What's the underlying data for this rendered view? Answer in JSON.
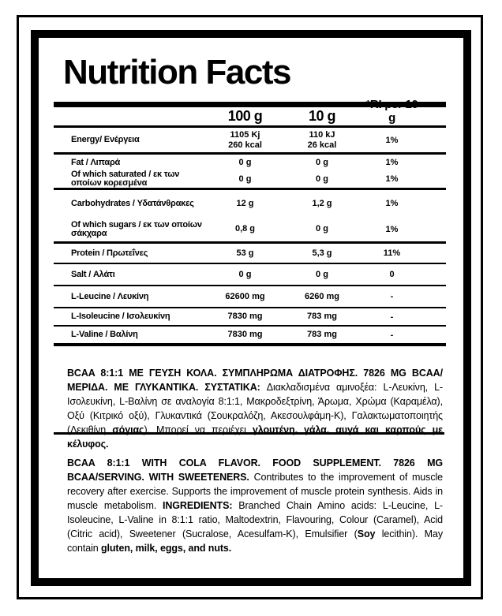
{
  "colors": {
    "ink": "#000000",
    "background": "#ffffff"
  },
  "label": {
    "title": "Nutrition Facts",
    "columns": [
      "100 g",
      "10 g",
      "*RI per 10 g"
    ],
    "rows": [
      {
        "name": "Energy/ Ενέργεια",
        "per100": [
          "1105 Kj",
          "260 kcal"
        ],
        "per10": [
          "110 kJ",
          "26 kcal"
        ],
        "ri": "1%"
      },
      {
        "name": "Fat / Λιπαρά",
        "per100": [
          "0 g"
        ],
        "per10": [
          "0 g"
        ],
        "ri": "1%"
      },
      {
        "name": "Of which saturated / εκ των οποίων κορεσμένα",
        "per100": [
          "0 g"
        ],
        "per10": [
          "0 g"
        ],
        "ri": "1%"
      },
      {
        "name": "Carbohydrates / Υδατάνθρακες",
        "per100": [
          "12 g"
        ],
        "per10": [
          "1,2 g"
        ],
        "ri": "1%"
      },
      {
        "name": "Of which sugars / εκ των οποίων σάκχαρα",
        "per100": [
          "0,8 g"
        ],
        "per10": [
          "0 g"
        ],
        "ri": "1%"
      },
      {
        "name": "Protein / Πρωτεΐνες",
        "per100": [
          "53 g"
        ],
        "per10": [
          "5,3 g"
        ],
        "ri": "11%"
      },
      {
        "name": "Salt / Αλάτι",
        "per100": [
          "0 g"
        ],
        "per10": [
          "0 g"
        ],
        "ri": "0"
      },
      {
        "name": "L-Leucine / Λευκίνη",
        "per100": [
          "62600 mg"
        ],
        "per10": [
          "6260 mg"
        ],
        "ri": "-"
      },
      {
        "name": "L-Isoleucine / Ισολευκίνη",
        "per100": [
          "7830 mg"
        ],
        "per10": [
          "783 mg"
        ],
        "ri": "-"
      },
      {
        "name": "L-Valine / Βαλίνη",
        "per100": [
          "7830 mg"
        ],
        "per10": [
          "783 mg"
        ],
        "ri": "-"
      }
    ]
  },
  "paragraph_greek": [
    {
      "t": "BCAA 8:1:1 ΜΕ ΓΕΥΣΗ ΚΟΛΑ. ΣΥΜΠΛΗΡΩΜΑ ΔΙΑΤΡΟΦΗΣ. 7826 MG BCAA/ΜΕΡΙΔΑ. ΜΕ ΓΛΥΚΑΝΤΙΚΑ. ΣΥΣΤΑΤΙΚΑ: ",
      "b": true
    },
    {
      "t": "Διακλαδισμένα αμινοξέα: L-Λευκίνη, L-Ισολευκίνη, L-Βαλίνη σε αναλογία 8:1:1, Μακροδεξτρίνη, Άρωμα, Χρώμα (Καραμέλα), Οξύ (Κιτρικό οξύ), Γλυκαντικά (Σουκραλόζη, Ακεσουλφάμη-Κ), Γαλακτωματοποιητής (Λεκιθίνη ",
      "b": false
    },
    {
      "t": "σόγιας",
      "b": true
    },
    {
      "t": "). Μπορεί να περιέχει ",
      "b": false
    },
    {
      "t": "γλουτένη, γάλα, αυγά και καρπούς με κέλυφος.",
      "b": true
    }
  ],
  "paragraph_english": [
    {
      "t": "BCAA 8:1:1 WITH COLA FLAVOR. FOOD SUPPLEMENT. 7826 MG BCAA/SERVING. WITH SWEETENERS. ",
      "b": true
    },
    {
      "t": "Contributes to the improvement of muscle recovery after exercise. Supports the improvement of muscle protein synthesis. Aids in muscle metabolism. ",
      "b": false
    },
    {
      "t": "INGREDIENTS: ",
      "b": true
    },
    {
      "t": "Branched Chain Amino acids: L-Leucine, L-Isoleucine, L-Valine in 8:1:1 ratio, Maltodextrin, Flavouring, Colour (Caramel), Acid (Citric acid), Sweetener (Sucralose, Acesulfam-K), Emulsifier (",
      "b": false
    },
    {
      "t": "Soy",
      "b": true
    },
    {
      "t": " lecithin). May contain ",
      "b": false
    },
    {
      "t": "gluten, milk, eggs, and nuts.",
      "b": true
    }
  ]
}
